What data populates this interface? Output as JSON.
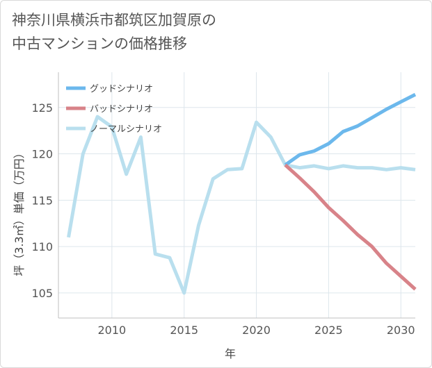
{
  "title": {
    "line1": "神奈川県横浜市都筑区加賀原の",
    "line2": "中古マンションの価格推移"
  },
  "chart_data": {
    "type": "line",
    "xlabel": "年",
    "ylabel": "坪（3.3㎡）単価（万円）",
    "xlim": [
      2006.3,
      2031
    ],
    "ylim": [
      102.3,
      128.8
    ],
    "xticks": [
      2010,
      2015,
      2020,
      2025,
      2030
    ],
    "yticks": [
      105,
      110,
      115,
      120,
      125
    ],
    "grid": true,
    "legend_position": "top-left",
    "series": [
      {
        "name": "グッドシナリオ",
        "color": "#6cb8ec",
        "x": [
          2022,
          2023,
          2024,
          2025,
          2026,
          2027,
          2028,
          2029,
          2030,
          2031
        ],
        "y": [
          118.8,
          119.9,
          120.3,
          121.1,
          122.4,
          123.0,
          123.9,
          124.8,
          125.6,
          126.4
        ]
      },
      {
        "name": "バッドシナリオ",
        "color": "#d88389",
        "x": [
          2022,
          2023,
          2024,
          2025,
          2026,
          2027,
          2028,
          2029,
          2030,
          2031
        ],
        "y": [
          118.8,
          117.4,
          115.9,
          114.2,
          112.8,
          111.3,
          110.0,
          108.2,
          106.8,
          105.4
        ]
      },
      {
        "name": "ノーマルシナリオ",
        "color": "#b9dfee",
        "x": [
          2007,
          2008,
          2009,
          2010,
          2011,
          2012,
          2013,
          2014,
          2015,
          2016,
          2017,
          2018,
          2019,
          2020,
          2021,
          2022,
          2023,
          2024,
          2025,
          2026,
          2027,
          2028,
          2029,
          2030,
          2031
        ],
        "y": [
          111.0,
          120.0,
          124.0,
          122.9,
          117.8,
          121.8,
          109.2,
          108.8,
          105.0,
          112.3,
          117.3,
          118.3,
          118.4,
          123.4,
          121.8,
          118.8,
          118.5,
          118.7,
          118.4,
          118.7,
          118.5,
          118.5,
          118.3,
          118.5,
          118.3
        ]
      }
    ]
  }
}
